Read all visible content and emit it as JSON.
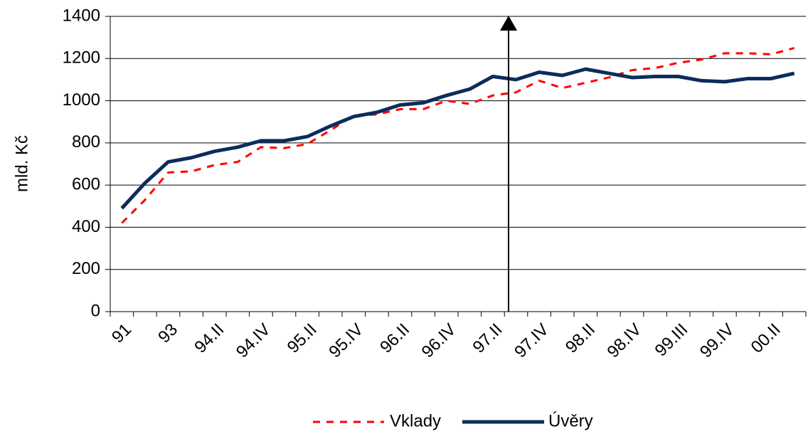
{
  "chart_data": {
    "type": "line",
    "y_label": "mld. Kč",
    "categories": [
      "91",
      null,
      "93",
      null,
      "94.II",
      null,
      "94.IV",
      null,
      "95.II",
      null,
      "95.IV",
      null,
      "96.II",
      null,
      "96.IV",
      null,
      "97.II",
      null,
      "97.IV",
      null,
      "98.II",
      null,
      "98.IV",
      null,
      "99.III",
      null,
      "99.IV",
      null,
      "00.II",
      null
    ],
    "series": [
      {
        "name": "Vklady",
        "color": "#ff0000",
        "dashed": true,
        "values": [
          420,
          530,
          660,
          665,
          695,
          710,
          780,
          775,
          795,
          860,
          930,
          935,
          960,
          960,
          1000,
          985,
          1025,
          1040,
          1095,
          1060,
          1085,
          1110,
          1145,
          1155,
          1180,
          1195,
          1225,
          1225,
          1220,
          1250
        ]
      },
      {
        "name": "Úvěry",
        "color": "#0b2d5b",
        "dashed": false,
        "values": [
          490,
          610,
          710,
          730,
          760,
          780,
          810,
          810,
          830,
          880,
          925,
          945,
          980,
          990,
          1025,
          1055,
          1115,
          1100,
          1135,
          1120,
          1150,
          1130,
          1110,
          1115,
          1115,
          1095,
          1090,
          1105,
          1105,
          1130
        ]
      }
    ],
    "ylim": [
      0,
      1400
    ],
    "yticks": [
      0,
      200,
      400,
      600,
      800,
      1000,
      1200,
      1400
    ],
    "grid": true,
    "legend": "bottom"
  }
}
